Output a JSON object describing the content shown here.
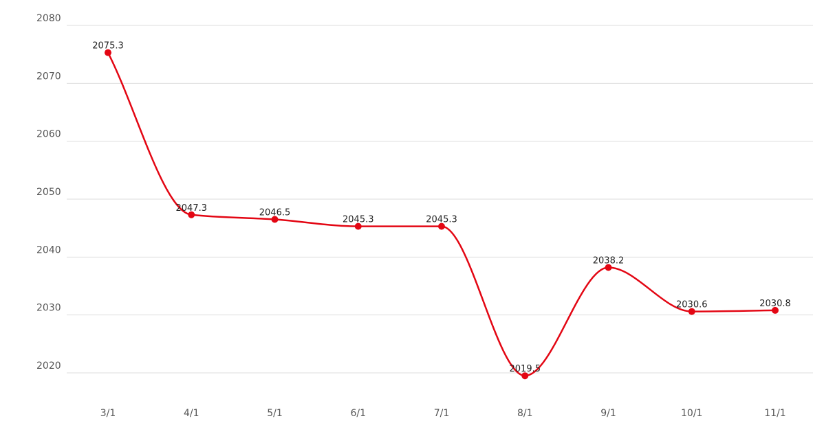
{
  "chart_data": {
    "type": "line",
    "categories": [
      "3/1",
      "4/1",
      "5/1",
      "6/1",
      "7/1",
      "8/1",
      "9/1",
      "10/1",
      "11/1"
    ],
    "series": [
      {
        "values": [
          2075.3,
          2047.3,
          2046.5,
          2045.3,
          2045.3,
          2019.5,
          2038.2,
          2030.6,
          2030.8
        ]
      }
    ],
    "value_labels": [
      "2075.3",
      "2047.3",
      "2046.5",
      "2045.3",
      "2045.3",
      "2019.5",
      "2038.2",
      "2030.6",
      "2030.8"
    ],
    "y_ticks": [
      "2080",
      "2070",
      "2060",
      "2050",
      "2040",
      "2030",
      "2020"
    ],
    "ylim": [
      2020,
      2080
    ],
    "grid": true,
    "smooth": true,
    "line_color": "#e30613",
    "title": "",
    "xlabel": "",
    "ylabel": ""
  }
}
